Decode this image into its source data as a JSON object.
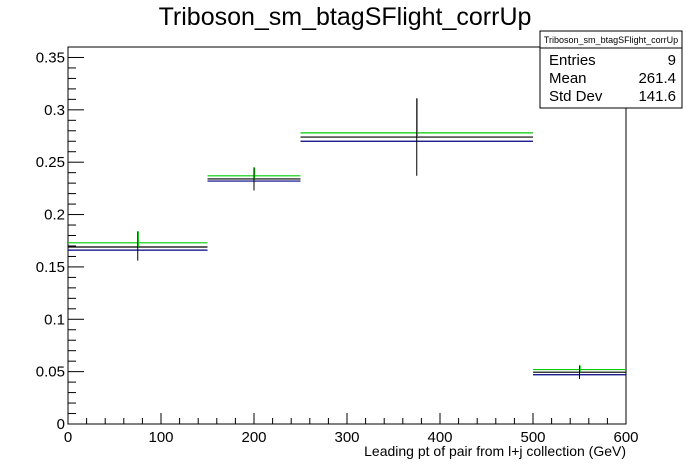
{
  "chart_data": {
    "type": "bar",
    "title": "Triboson_sm_btagSFlight_corrUp",
    "xlabel": "Leading pt of pair from l+j collection (GeV)",
    "ylabel": "",
    "xlim": [
      0,
      600
    ],
    "ylim": [
      0,
      0.36
    ],
    "x_ticks": [
      "0",
      "100",
      "200",
      "300",
      "400",
      "500",
      "600"
    ],
    "x_tick_values": [
      0,
      100,
      200,
      300,
      400,
      500,
      600
    ],
    "y_ticks": [
      "0",
      "0.05",
      "0.1",
      "0.15",
      "0.2",
      "0.25",
      "0.3",
      "0.35"
    ],
    "y_tick_values": [
      0,
      0.05,
      0.1,
      0.15,
      0.2,
      0.25,
      0.3,
      0.35
    ],
    "bins": [
      {
        "low": 0,
        "high": 150,
        "center": 75,
        "nominal": 0.169,
        "upper": 0.173,
        "lower": 0.166,
        "err_low": 0.156,
        "err_high": 0.184
      },
      {
        "low": 150,
        "high": 250,
        "center": 200,
        "nominal": 0.234,
        "upper": 0.237,
        "lower": 0.232,
        "err_low": 0.223,
        "err_high": 0.245
      },
      {
        "low": 250,
        "high": 500,
        "center": 375,
        "nominal": 0.274,
        "upper": 0.278,
        "lower": 0.27,
        "err_low": 0.237,
        "err_high": 0.311
      },
      {
        "low": 500,
        "high": 600,
        "center": 550,
        "nominal": 0.0495,
        "upper": 0.052,
        "lower": 0.047,
        "err_low": 0.043,
        "err_high": 0.056
      }
    ],
    "series_colors": {
      "nominal": "#000000",
      "up": "#00cc00",
      "down": "#000080"
    },
    "grid": false,
    "legend": "none"
  },
  "stats_box": {
    "title": "Triboson_sm_btagSFlight_corrUp",
    "rows": [
      {
        "label": "Entries",
        "value": "9"
      },
      {
        "label": "Mean",
        "value": "261.4"
      },
      {
        "label": "Std Dev",
        "value": "141.6"
      }
    ]
  }
}
